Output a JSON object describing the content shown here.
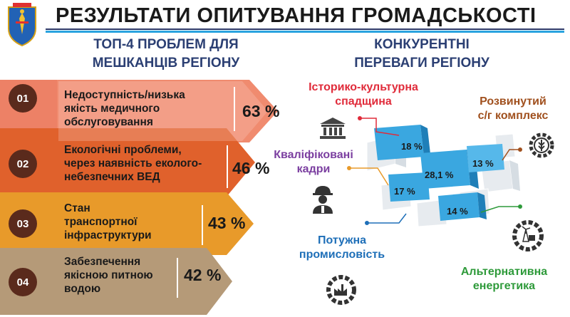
{
  "header": {
    "title": "РЕЗУЛЬТАТИ ОПИТУВАННЯ ГРОМАДСЬКОСТІ",
    "left_heading_line1": "ТОП-4 ПРОБЛЕМ ДЛЯ",
    "left_heading_line2": "МЕШКАНЦІВ РЕГІОНУ",
    "right_heading_line1": "КОНКУРЕНТНІ",
    "right_heading_line2": "ПЕРЕВАГИ РЕГІОНУ"
  },
  "problems": [
    {
      "num": "01",
      "lines": [
        "Недоступність/низька",
        "якість медичного",
        "обслуговування"
      ],
      "percent": "63 %",
      "value": 63,
      "color": "#f08b6f"
    },
    {
      "num": "02",
      "lines": [
        "Екологічні проблеми,",
        "через наявність еколого-",
        "небезпечних ВЕД"
      ],
      "percent": "46 %",
      "value": 46,
      "color": "#e0612c"
    },
    {
      "num": "03",
      "lines": [
        "Стан",
        "транспортної",
        "інфраструктури"
      ],
      "percent": "43 %",
      "value": 43,
      "color": "#e89a2a"
    },
    {
      "num": "04",
      "lines": [
        "Забезпечення",
        "якісною питною",
        "водою"
      ],
      "percent": "42 %",
      "value": 42,
      "color": "#b59a78"
    }
  ],
  "advantages": {
    "heritage": {
      "line1": "Історико-культурна",
      "line2": "спадщина",
      "percent": "18 %",
      "color": "#e02b3a"
    },
    "agro": {
      "line1": "Розвинутий",
      "line2": "с/г комплекс",
      "percent": "13 %",
      "color": "#a0501e"
    },
    "personnel": {
      "line1": "Кваліфіковані",
      "line2": "кадри",
      "percent": "17 %",
      "color": "#7b3fa0"
    },
    "central": {
      "percent": "28,1 %"
    },
    "industry": {
      "line1": "Потужна",
      "line2": "промисловість",
      "percent": "14 %",
      "color": "#1e6fb8"
    },
    "energy": {
      "line1": "Альтернативна",
      "line2": "енергетика",
      "color": "#2e9a3a"
    }
  },
  "icons": [
    "crest-icon",
    "museum-icon",
    "agro-gear-icon",
    "worker-icon",
    "factory-gear-icon",
    "energy-gear-icon"
  ]
}
